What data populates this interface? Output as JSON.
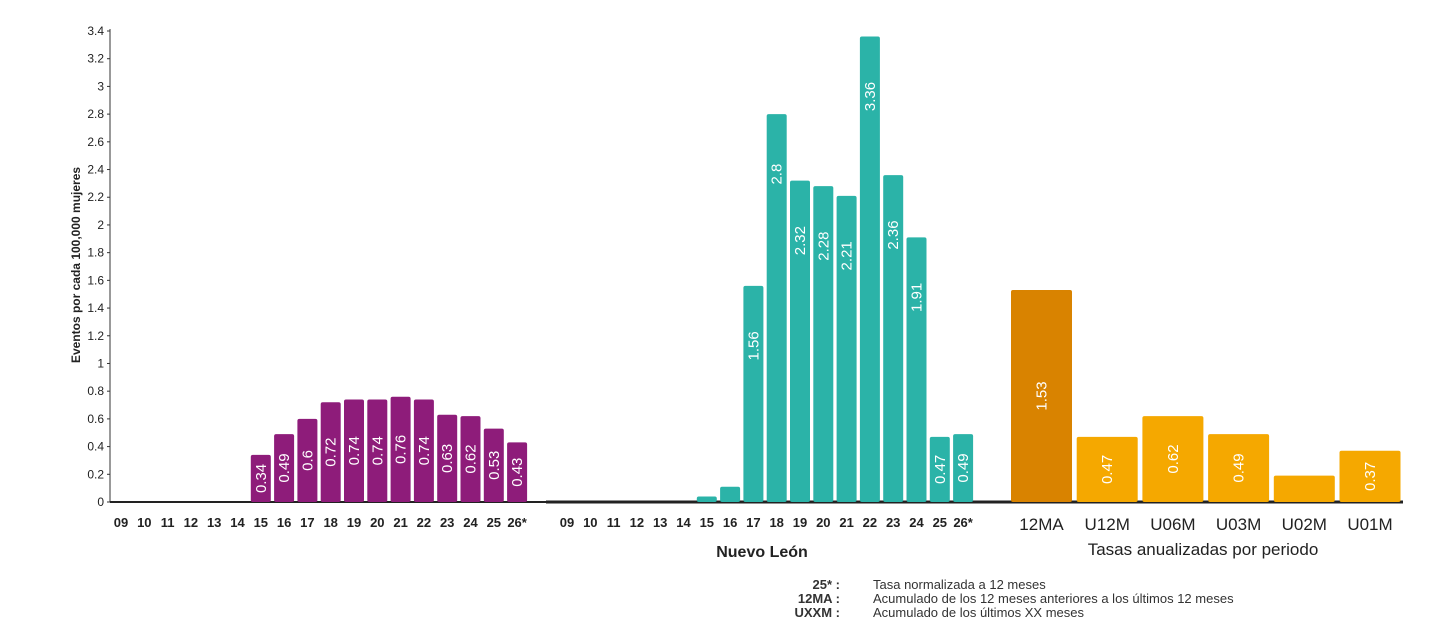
{
  "chart_data": {
    "type": "bar",
    "ylabel": "Eventos por cada 100,000 mujeres",
    "ylim": [
      0,
      3.4
    ],
    "y_ticks": [
      "0",
      "0.2",
      "0.4",
      "0.6",
      "0.8",
      "1",
      "1.2",
      "1.4",
      "1.6",
      "1.8",
      "2",
      "2.2",
      "2.4",
      "2.6",
      "2.8",
      "3",
      "3.2",
      "3.4"
    ],
    "grid": false,
    "groups": [
      {
        "label": "",
        "color": "#8e1c7a",
        "categories": [
          "09",
          "10",
          "11",
          "12",
          "13",
          "14",
          "15",
          "16",
          "17",
          "18",
          "19",
          "20",
          "21",
          "22",
          "23",
          "24",
          "25",
          "26*"
        ],
        "values": [
          0,
          0,
          0,
          0,
          0,
          0,
          0.34,
          0.49,
          0.6,
          0.72,
          0.74,
          0.74,
          0.76,
          0.74,
          0.63,
          0.62,
          0.53,
          0.43
        ],
        "labels": [
          "0",
          "0",
          "0",
          "0",
          "0",
          "0",
          "0.34",
          "0.49",
          "0.6",
          "0.72",
          "0.74",
          "0.74",
          "0.76",
          "0.74",
          "0.63",
          "0.62",
          "0.53",
          "0.43"
        ]
      },
      {
        "label": "Nuevo León",
        "color": "#2bb3a8",
        "categories": [
          "09",
          "10",
          "11",
          "12",
          "13",
          "14",
          "15",
          "16",
          "17",
          "18",
          "19",
          "20",
          "21",
          "22",
          "23",
          "24",
          "25",
          "26*"
        ],
        "values": [
          0,
          0,
          0,
          0,
          0,
          0,
          0.04,
          0.11,
          1.56,
          2.8,
          2.32,
          2.28,
          2.21,
          3.36,
          2.36,
          1.91,
          0.47,
          0.49
        ],
        "labels": [
          "0",
          "0",
          "0",
          "0",
          "0",
          "0",
          "0.04",
          "0.11",
          "1.56",
          "2.8",
          "2.32",
          "2.28",
          "2.21",
          "3.36",
          "2.36",
          "1.91",
          "0.47",
          "0.49"
        ]
      },
      {
        "label": "Tasas anualizadas por periodo",
        "categories": [
          "12MA",
          "U12M",
          "U06M",
          "U03M",
          "U02M",
          "U01M"
        ],
        "values": [
          1.53,
          0.47,
          0.62,
          0.49,
          0.19,
          0.37
        ],
        "labels": [
          "1.53",
          "0.47",
          "0.62",
          "0.49",
          "0.19",
          "0.37"
        ],
        "colors": [
          "#d98300",
          "#f5a800",
          "#f5a800",
          "#f5a800",
          "#f5a800",
          "#f5a800"
        ]
      }
    ]
  },
  "notes": [
    {
      "key": "25* :",
      "text": "Tasa normalizada a 12 meses"
    },
    {
      "key": "12MA :",
      "text": "Acumulado de los 12 meses anteriores a los últimos 12 meses"
    },
    {
      "key": "UXXM :",
      "text": "Acumulado de los últimos XX meses"
    }
  ]
}
